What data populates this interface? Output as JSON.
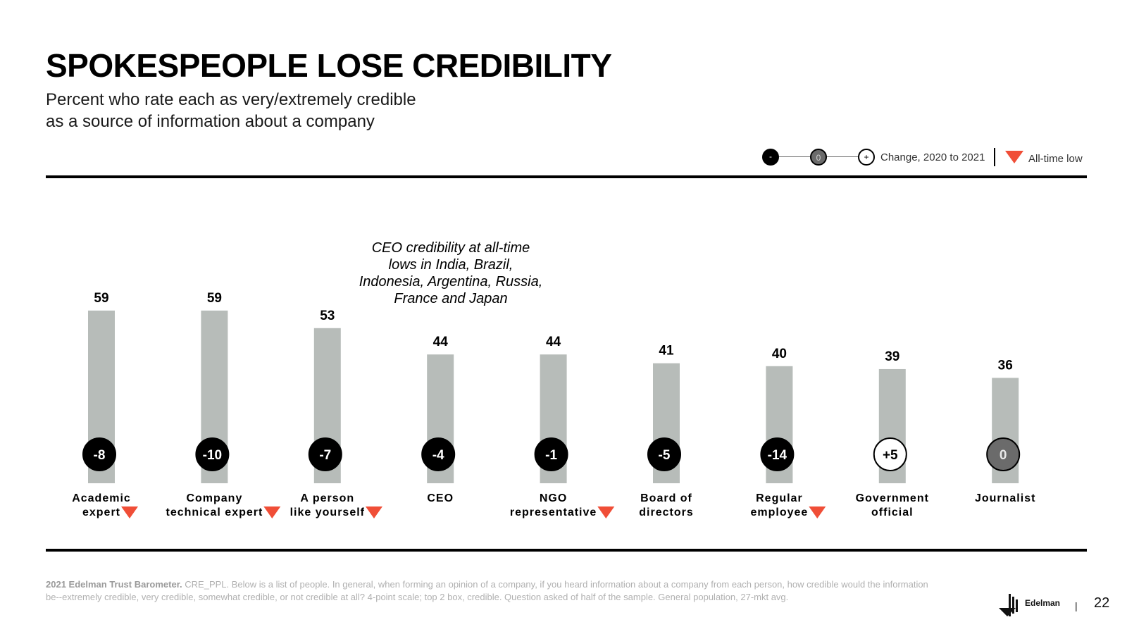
{
  "header": {
    "title": "SPOKESPEOPLE LOSE CREDIBILITY",
    "subtitle_line1": "Percent who rate each as very/extremely credible",
    "subtitle_line2": "as a source of information about a company"
  },
  "legend": {
    "minus_symbol": "-",
    "zero_symbol": "0",
    "plus_symbol": "+",
    "change_label": "Change, 2020 to 2021",
    "all_time_low_label": "All-time low"
  },
  "annotation": "CEO credibility at all-time lows in India, Brazil, Indonesia, Argentina, Russia, France and Japan",
  "chart_data": {
    "type": "bar",
    "title": "SPOKESPEOPLE LOSE CREDIBILITY",
    "ylabel": "Percent who rate each as very/extremely credible",
    "ylim": [
      0,
      70
    ],
    "categories": [
      [
        "Academic",
        "expert"
      ],
      [
        "Company",
        "technical expert"
      ],
      [
        "A person",
        "like yourself"
      ],
      [
        "CEO"
      ],
      [
        "NGO",
        "representative"
      ],
      [
        "Board of",
        "directors"
      ],
      [
        "Regular",
        "employee"
      ],
      [
        "Government",
        "official"
      ],
      [
        "Journalist"
      ]
    ],
    "values": [
      59,
      59,
      53,
      44,
      44,
      41,
      40,
      39,
      36
    ],
    "change_labels": [
      "-8",
      "-10",
      "-7",
      "-4",
      "-1",
      "-5",
      "-14",
      "+5",
      "0"
    ],
    "change_direction": [
      "negative",
      "negative",
      "negative",
      "negative",
      "negative",
      "negative",
      "negative",
      "positive",
      "zero"
    ],
    "all_time_low": [
      true,
      true,
      true,
      false,
      true,
      false,
      true,
      false,
      false
    ]
  },
  "footnote": {
    "source_bold": "2021 Edelman Trust Barometer.",
    "text": " CRE_PPL. Below is a list of people. In general, when forming an opinion of a company, if you heard information about a company from each person, how credible would the information be--extremely credible, very credible, somewhat credible, or not credible at all? 4-point scale; top 2 box, credible. Question asked of half of the sample. General population, 27-mkt avg."
  },
  "brand": {
    "logo_text": "Edelman"
  },
  "page": {
    "separator": "|",
    "number": "22"
  },
  "colors": {
    "bar": "#b7bcb9",
    "negative": "#000000",
    "zero": "#6b6b6b",
    "positive": "#ffffff",
    "low_marker": "#f04e37"
  }
}
